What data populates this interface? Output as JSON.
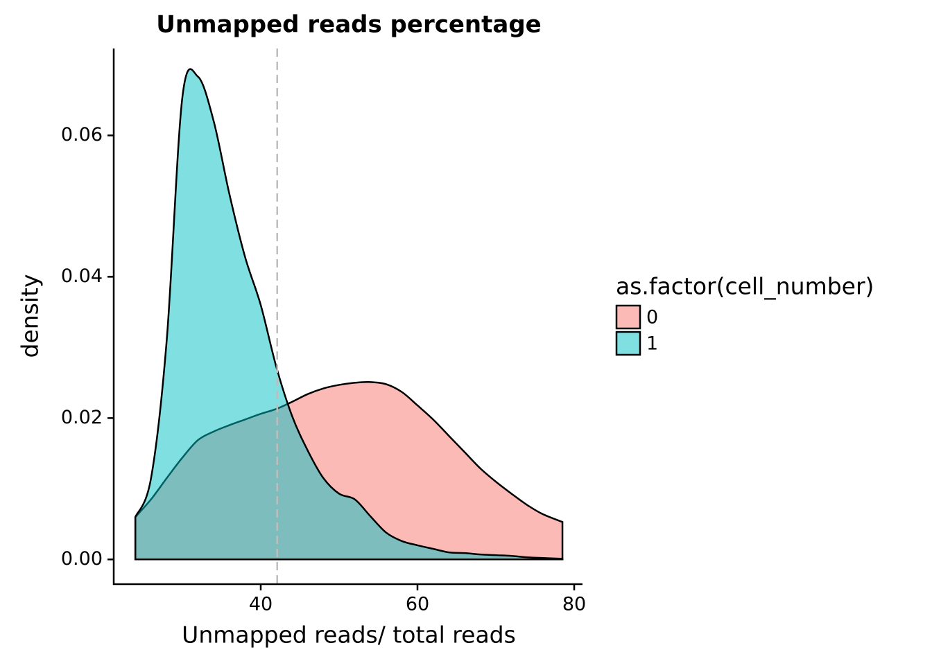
{
  "chart_data": {
    "type": "density",
    "title": "Unmapped reads percentage",
    "x_label": "Unmapped reads/ total reads",
    "y_label": "density",
    "x": [
      24,
      26,
      28,
      30,
      32,
      34,
      36,
      38,
      40,
      42,
      44,
      46,
      48,
      50,
      52,
      54,
      56,
      58,
      60,
      62,
      64,
      66,
      68,
      70,
      72,
      74,
      76,
      78.5
    ],
    "series": [
      {
        "name": "0",
        "color": "#F8766D",
        "values": [
          0.006,
          0.0085,
          0.0115,
          0.0144,
          0.0169,
          0.0181,
          0.019,
          0.0198,
          0.0206,
          0.0213,
          0.0223,
          0.0234,
          0.0242,
          0.0247,
          0.025,
          0.0251,
          0.0248,
          0.0237,
          0.0218,
          0.0198,
          0.0175,
          0.0152,
          0.0129,
          0.011,
          0.0093,
          0.0077,
          0.0064,
          0.0053
        ]
      },
      {
        "name": "1",
        "color": "#00BFC4",
        "values": [
          0.006,
          0.0115,
          0.031,
          0.0654,
          0.0683,
          0.062,
          0.0517,
          0.0428,
          0.036,
          0.0272,
          0.0203,
          0.0154,
          0.0115,
          0.0093,
          0.0085,
          0.0061,
          0.0038,
          0.0026,
          0.002,
          0.0015,
          0.001,
          0.0009,
          0.0007,
          0.0006,
          0.0005,
          0.0003,
          0.0002,
          0.0001
        ]
      }
    ],
    "vline": 42.1,
    "xlim": [
      21.24,
      81.06
    ],
    "xticks": [
      40,
      60,
      80
    ],
    "ylim": [
      -0.0035,
      0.0723
    ],
    "yticks": [
      {
        "value": 0,
        "label": "0.00"
      },
      {
        "value": 0.02,
        "label": "0.02"
      },
      {
        "value": 0.04,
        "label": "0.04"
      },
      {
        "value": 0.06,
        "label": "0.06"
      }
    ],
    "legend_title": "as.factor(cell_number)",
    "legend_position": "right"
  }
}
